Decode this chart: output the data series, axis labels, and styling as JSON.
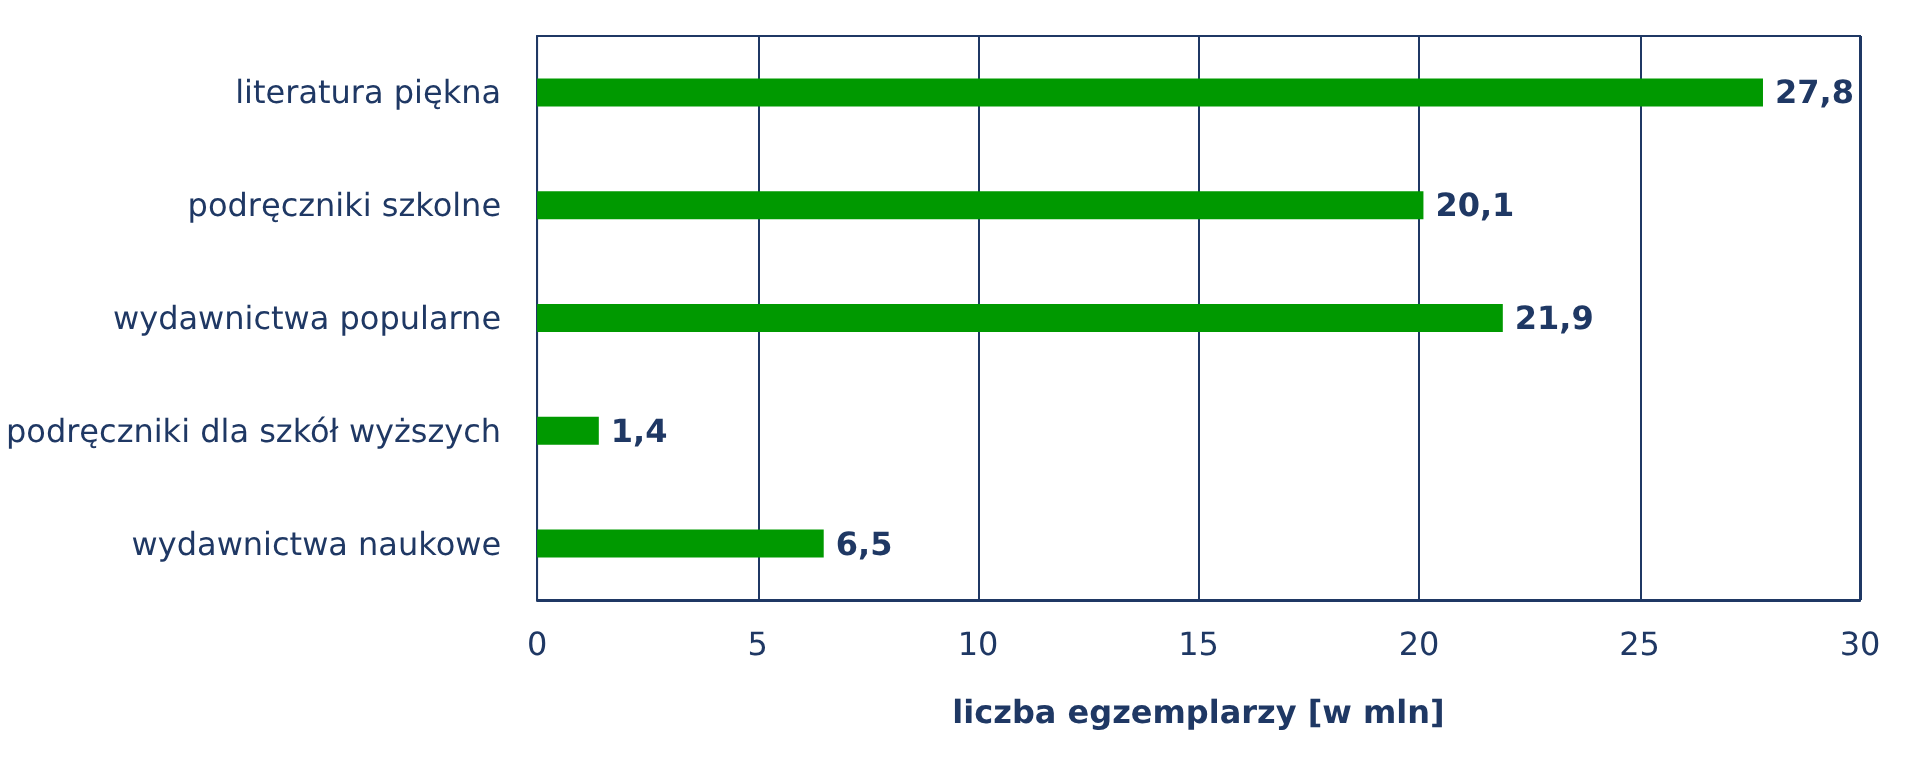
{
  "chart_data": {
    "type": "bar",
    "orientation": "horizontal",
    "xlabel": "liczba egzemplarzy [w mln]",
    "categories": [
      "literatura piękna",
      "podręczniki szkolne",
      "wydawnictwa popularne",
      "podręczniki dla szkół wyższych",
      "wydawnictwa naukowe"
    ],
    "values": [
      27.8,
      20.1,
      21.9,
      1.4,
      6.5
    ],
    "color": "#009900",
    "value_labels": [
      "27,8",
      "20,1",
      "21,9",
      "1,4",
      "6,5"
    ],
    "xlim": [
      0,
      30
    ],
    "xticks": [
      0,
      5,
      10,
      15,
      20,
      25,
      30
    ],
    "grid": "x"
  }
}
